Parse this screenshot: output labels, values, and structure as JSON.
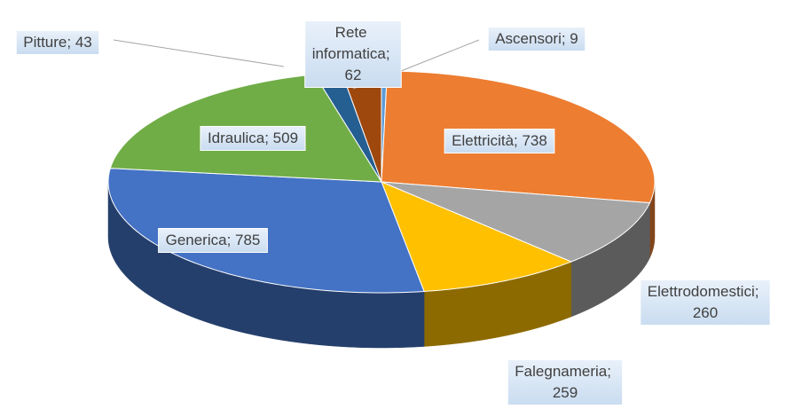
{
  "chart_data": {
    "type": "pie",
    "categories": [
      "Ascensori",
      "Elettricità",
      "Elettrodomestici",
      "Falegnameria",
      "Generica",
      "Idraulica",
      "Pitture",
      "Rete informatica"
    ],
    "values": [
      9,
      738,
      260,
      259,
      785,
      509,
      43,
      62
    ],
    "value_labels": [
      "Ascensori; 9",
      "Elettricità; 738",
      "Elettrodomestici; 260",
      "Falegnameria; 259",
      "Generica; 785",
      "Idraulica; 509",
      "Pitture; 43",
      "Rete informatica; 62"
    ],
    "colors": [
      "#5b9bd5",
      "#ed7d31",
      "#a5a5a5",
      "#ffc000",
      "#4472c4",
      "#70ad47",
      "#255e91",
      "#9e480e"
    ]
  }
}
